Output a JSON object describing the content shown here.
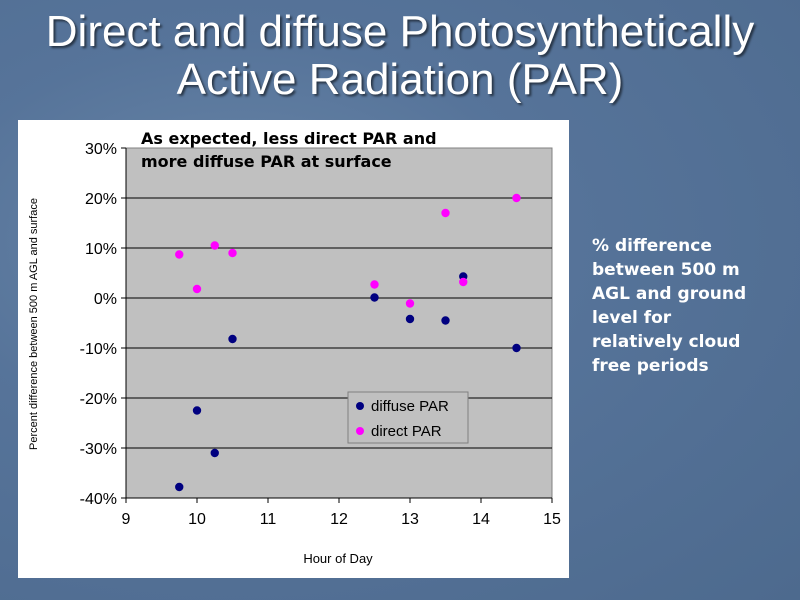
{
  "slide": {
    "title_lines": [
      "Direct and diffuse Photosynthetically",
      "Active Radiation (PAR)"
    ],
    "side_note_lines": [
      "% difference",
      "between 500 m",
      "AGL and ground",
      "level for",
      "relatively cloud",
      "free periods"
    ]
  },
  "colors": {
    "plot_bg": "#c0c0c0",
    "diffuse": "#000080",
    "direct": "#ff00ff"
  },
  "chart_data": {
    "type": "scatter",
    "annotation": [
      "As expected, less direct PAR and",
      "more diffuse PAR at surface"
    ],
    "xlabel": "Hour of Day",
    "ylabel": "Percent difference between 500 m AGL and surface",
    "xlim": [
      9,
      15
    ],
    "ylim": [
      -40,
      30
    ],
    "xticks": [
      9,
      10,
      11,
      12,
      13,
      14,
      15
    ],
    "xtick_labels": [
      "9",
      "10",
      "11",
      "12",
      "13",
      "14",
      "15"
    ],
    "yticks": [
      30,
      20,
      10,
      0,
      -10,
      -20,
      -30,
      -40
    ],
    "ytick_labels": [
      "30%",
      "20%",
      "10%",
      "0%",
      "-10%",
      "-20%",
      "-30%",
      "-40%"
    ],
    "grid": "horizontal",
    "legend_position": "bottom-center",
    "series": [
      {
        "name": "diffuse PAR",
        "x": [
          9.75,
          10.0,
          10.25,
          10.5,
          12.5,
          13.0,
          13.5,
          13.75,
          14.5
        ],
        "y": [
          -37.8,
          -22.5,
          -31.0,
          -8.2,
          0.1,
          -4.2,
          -4.5,
          4.3,
          -10.0
        ]
      },
      {
        "name": "direct PAR",
        "x": [
          9.75,
          10.0,
          10.25,
          10.5,
          12.5,
          13.0,
          13.5,
          13.75,
          14.5
        ],
        "y": [
          8.7,
          1.8,
          10.5,
          9.0,
          2.7,
          -1.1,
          17.0,
          3.2,
          20.0
        ]
      }
    ]
  }
}
